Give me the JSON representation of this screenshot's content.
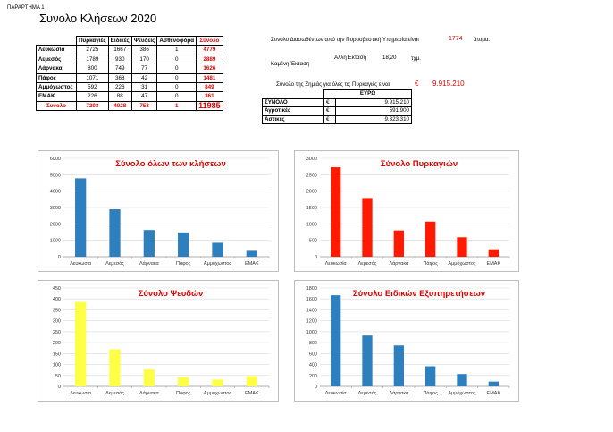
{
  "header": {
    "annex": "ΠΑΡΑΡΤΗΜΑ 1",
    "title": "Συνολο Κλήσεων 2020"
  },
  "stats_table": {
    "columns": [
      "Πυρκαγιές",
      "Ειδικές",
      "Ψευδείς",
      "Ασθενοφόρα",
      "Σύνολο"
    ],
    "rows": [
      {
        "label": "Λευκωσία",
        "values": [
          "2725",
          "1667",
          "386",
          "1",
          "4779"
        ]
      },
      {
        "label": "Λεμεσός",
        "values": [
          "1789",
          "930",
          "170",
          "0",
          "2889"
        ]
      },
      {
        "label": "Λάρνακα",
        "values": [
          "800",
          "749",
          "77",
          "0",
          "1626"
        ]
      },
      {
        "label": "Πάφος",
        "values": [
          "1071",
          "368",
          "42",
          "0",
          "1481"
        ]
      },
      {
        "label": "Αμμόχωστος",
        "values": [
          "592",
          "226",
          "31",
          "0",
          "849"
        ]
      },
      {
        "label": "ΕΜΑΚ",
        "values": [
          "226",
          "88",
          "47",
          "0",
          "361"
        ]
      }
    ],
    "total": {
      "label": "Συνολο",
      "values": [
        "7203",
        "4028",
        "753",
        "1",
        "11985"
      ]
    }
  },
  "info": {
    "rescued_label": "Συνολο Διασωθέντων από την Πυροσβεστική Υπηρεσία είναι",
    "rescued_value": "1774",
    "rescued_unit": "άτομα.",
    "burnt_label": "Καμένη Έκταση",
    "other_area_label": "Αλλη Εκταση",
    "other_area_value": "18,20",
    "other_area_unit": "τχμ.",
    "damage_label": "Συνολο της Ζημιάς για όλες τις Πυρκαγιές είναι",
    "damage_currency": "€",
    "damage_value": "9.915.210"
  },
  "money_table": {
    "header": "ΕΥΡΩ",
    "rows": [
      {
        "label": "ΣΥΝΟΛΟ",
        "currency": "€",
        "amount": "9.915.210"
      },
      {
        "label": "Αγροτικές",
        "currency": "€",
        "amount": "591.900"
      },
      {
        "label": "Αστικές",
        "currency": "€",
        "amount": "9.323.310"
      }
    ]
  },
  "chart_data": [
    {
      "type": "bar",
      "title": "Σύνολο όλων των κλήσεων",
      "categories": [
        "Λευκωσία",
        "Λεμεσός",
        "Λάρνακα",
        "Πάφος",
        "Αμμόχωστος",
        "ΕΜΑΚ"
      ],
      "values": [
        4779,
        2889,
        1626,
        1481,
        849,
        361
      ],
      "ylim": [
        0,
        6000
      ],
      "yticks": [
        0,
        1000,
        2000,
        3000,
        4000,
        5000,
        6000
      ],
      "color": "#2e7fbd",
      "grid": true
    },
    {
      "type": "bar",
      "title": "Σύνολο Πυρκαγιών",
      "categories": [
        "Λευκωσία",
        "Λεμεσός",
        "Λάρνακα",
        "Πάφος",
        "Αμμόχωστος",
        "ΕΜΑΚ"
      ],
      "values": [
        2725,
        1789,
        800,
        1071,
        592,
        226
      ],
      "ylim": [
        0,
        3000
      ],
      "yticks": [
        0,
        500,
        1000,
        1500,
        2000,
        2500,
        3000
      ],
      "color": "#ff1a00",
      "grid": true
    },
    {
      "type": "bar",
      "title": "Σύνολο Ψευδών",
      "categories": [
        "Λευκωσία",
        "Λεμεσός",
        "Λάρνακα",
        "Πάφος",
        "Αμμόχωστος",
        "ΕΜΑΚ"
      ],
      "values": [
        386,
        170,
        77,
        42,
        31,
        47
      ],
      "ylim": [
        0,
        450
      ],
      "yticks": [
        0,
        50,
        100,
        150,
        200,
        250,
        300,
        350,
        400,
        450
      ],
      "color": "#ffff44",
      "grid": true
    },
    {
      "type": "bar",
      "title": "Σύνολο Ειδικών Εξυπηρετήσεων",
      "categories": [
        "Λευκωσία",
        "Λεμεσός",
        "Λάρνακα",
        "Πάφος",
        "Αμμόχωστος",
        "ΕΜΑΚ"
      ],
      "values": [
        1667,
        930,
        749,
        368,
        226,
        88
      ],
      "ylim": [
        0,
        1800
      ],
      "yticks": [
        0,
        200,
        400,
        600,
        800,
        1000,
        1200,
        1400,
        1600,
        1800
      ],
      "color": "#2e7fbd",
      "grid": true
    }
  ]
}
